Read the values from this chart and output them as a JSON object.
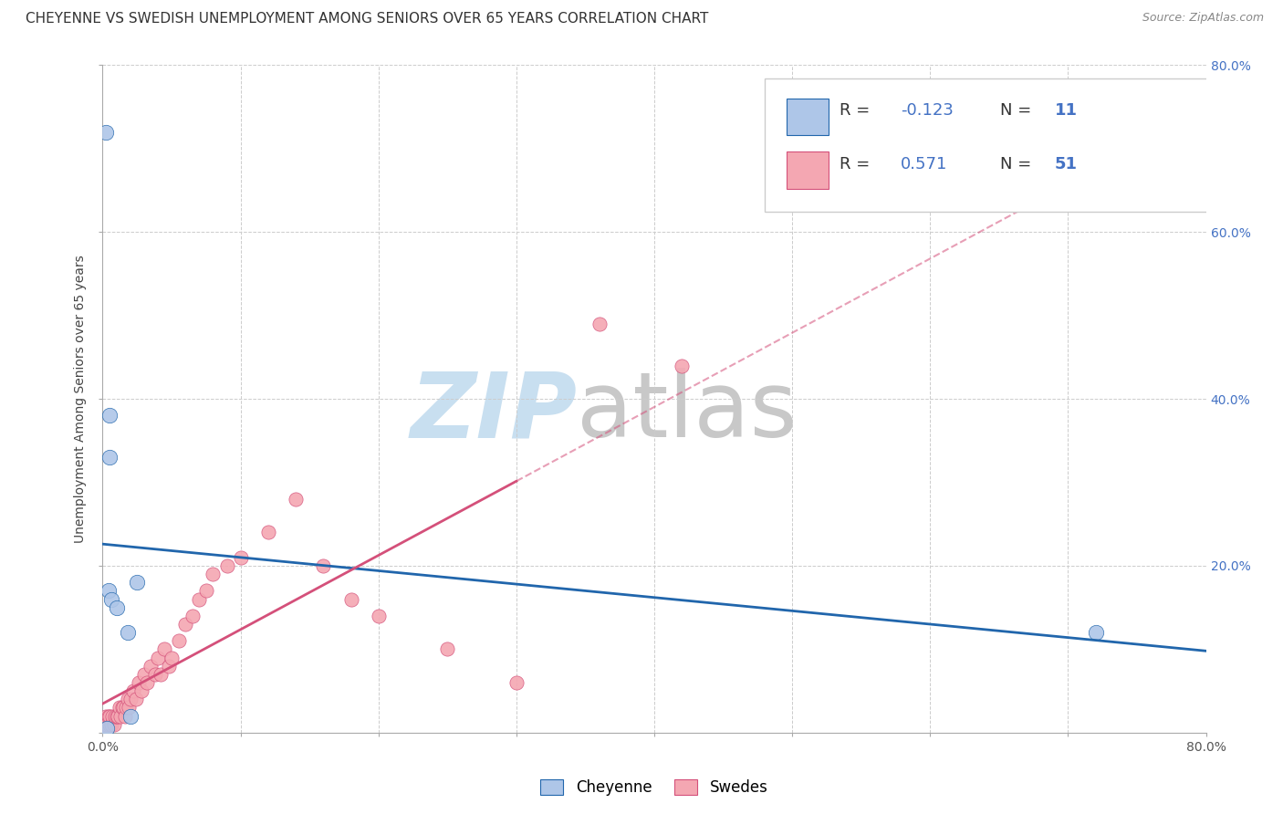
{
  "title": "CHEYENNE VS SWEDISH UNEMPLOYMENT AMONG SENIORS OVER 65 YEARS CORRELATION CHART",
  "source": "Source: ZipAtlas.com",
  "ylabel": "Unemployment Among Seniors over 65 years",
  "xlim": [
    0.0,
    0.8
  ],
  "ylim": [
    0.0,
    0.8
  ],
  "xticks": [
    0.0,
    0.1,
    0.2,
    0.3,
    0.4,
    0.5,
    0.6,
    0.7,
    0.8
  ],
  "yticks": [
    0.0,
    0.2,
    0.4,
    0.6,
    0.8
  ],
  "xtick_labels": [
    "0.0%",
    "",
    "",
    "",
    "",
    "",
    "",
    "",
    "80.0%"
  ],
  "ytick_labels": [
    "",
    "20.0%",
    "40.0%",
    "60.0%",
    "80.0%"
  ],
  "right_ytick_labels": [
    "",
    "20.0%",
    "40.0%",
    "60.0%",
    "80.0%"
  ],
  "cheyenne_x": [
    0.002,
    0.003,
    0.004,
    0.005,
    0.005,
    0.006,
    0.01,
    0.018,
    0.02,
    0.025,
    0.72
  ],
  "cheyenne_y": [
    0.72,
    0.005,
    0.17,
    0.38,
    0.33,
    0.16,
    0.15,
    0.12,
    0.02,
    0.18,
    0.12
  ],
  "swedes_x": [
    0.001,
    0.002,
    0.003,
    0.004,
    0.005,
    0.005,
    0.006,
    0.007,
    0.008,
    0.009,
    0.01,
    0.011,
    0.012,
    0.013,
    0.014,
    0.015,
    0.016,
    0.017,
    0.018,
    0.019,
    0.02,
    0.022,
    0.024,
    0.026,
    0.028,
    0.03,
    0.032,
    0.035,
    0.038,
    0.04,
    0.042,
    0.045,
    0.048,
    0.05,
    0.055,
    0.06,
    0.065,
    0.07,
    0.075,
    0.08,
    0.09,
    0.1,
    0.12,
    0.14,
    0.16,
    0.18,
    0.2,
    0.25,
    0.3,
    0.36,
    0.42
  ],
  "swedes_y": [
    0.01,
    0.02,
    0.01,
    0.02,
    0.01,
    0.02,
    0.01,
    0.02,
    0.01,
    0.02,
    0.02,
    0.02,
    0.03,
    0.02,
    0.03,
    0.03,
    0.02,
    0.03,
    0.04,
    0.03,
    0.04,
    0.05,
    0.04,
    0.06,
    0.05,
    0.07,
    0.06,
    0.08,
    0.07,
    0.09,
    0.07,
    0.1,
    0.08,
    0.09,
    0.11,
    0.13,
    0.14,
    0.16,
    0.17,
    0.19,
    0.2,
    0.21,
    0.24,
    0.28,
    0.2,
    0.16,
    0.14,
    0.1,
    0.06,
    0.49,
    0.44
  ],
  "cheyenne_R": -0.123,
  "cheyenne_N": 11,
  "swedes_R": 0.571,
  "swedes_N": 51,
  "cheyenne_color": "#aec6e8",
  "cheyenne_line_color": "#2166ac",
  "swedes_color": "#f4a7b2",
  "swedes_line_color": "#d4507a",
  "watermark_zip": "ZIP",
  "watermark_atlas": "atlas",
  "watermark_color_zip": "#c8dff0",
  "watermark_color_atlas": "#c8c8c8",
  "background_color": "#ffffff",
  "title_fontsize": 11,
  "axis_label_fontsize": 10,
  "tick_fontsize": 10,
  "legend_fontsize": 13,
  "source_fontsize": 9,
  "legend_R_label": "R = ",
  "legend_N_label": "N = ",
  "cheyenne_R_str": "-0.123",
  "cheyenne_N_str": "11",
  "swedes_R_str": "0.571",
  "swedes_N_str": "51",
  "bottom_legend_cheyenne": "Cheyenne",
  "bottom_legend_swedes": "Swedes"
}
